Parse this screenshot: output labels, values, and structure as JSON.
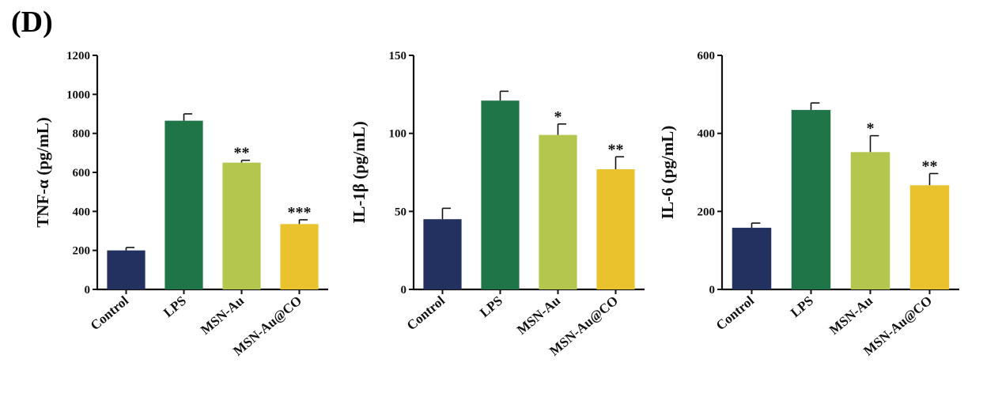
{
  "panel_label": "(D)",
  "chart_data": [
    {
      "type": "bar",
      "categories": [
        "Control",
        "LPS",
        "MSN-Au",
        "MSN-Au@CO"
      ],
      "values": [
        200,
        865,
        650,
        335
      ],
      "errors": [
        15,
        35,
        12,
        22
      ],
      "significance": [
        "",
        "",
        "**",
        "***"
      ],
      "ylabel": "TNF-α (pg/mL)",
      "ylim": [
        0,
        1200
      ],
      "yticks": [
        0,
        200,
        400,
        600,
        800,
        1000,
        1200
      ],
      "colors": [
        "#22315f",
        "#1f7548",
        "#b5c64e",
        "#e8c32e"
      ]
    },
    {
      "type": "bar",
      "categories": [
        "Control",
        "LPS",
        "MSN-Au",
        "MSN-Au@CO"
      ],
      "values": [
        45,
        121,
        99,
        77
      ],
      "errors": [
        7,
        6,
        7,
        8
      ],
      "significance": [
        "",
        "",
        "*",
        "**"
      ],
      "ylabel": "IL-1β (pg/mL)",
      "ylim": [
        0,
        150
      ],
      "yticks": [
        0,
        50,
        100,
        150
      ],
      "colors": [
        "#22315f",
        "#1f7548",
        "#b5c64e",
        "#e8c32e"
      ]
    },
    {
      "type": "bar",
      "categories": [
        "Control",
        "LPS",
        "MSN-Au",
        "MSN-Au@CO"
      ],
      "values": [
        158,
        460,
        352,
        267
      ],
      "errors": [
        12,
        18,
        42,
        30
      ],
      "significance": [
        "",
        "",
        "*",
        "**"
      ],
      "ylabel": "IL-6 (pg/mL)",
      "ylim": [
        0,
        600
      ],
      "yticks": [
        0,
        200,
        400,
        600
      ],
      "colors": [
        "#22315f",
        "#1f7548",
        "#b5c64e",
        "#e8c32e"
      ]
    }
  ]
}
